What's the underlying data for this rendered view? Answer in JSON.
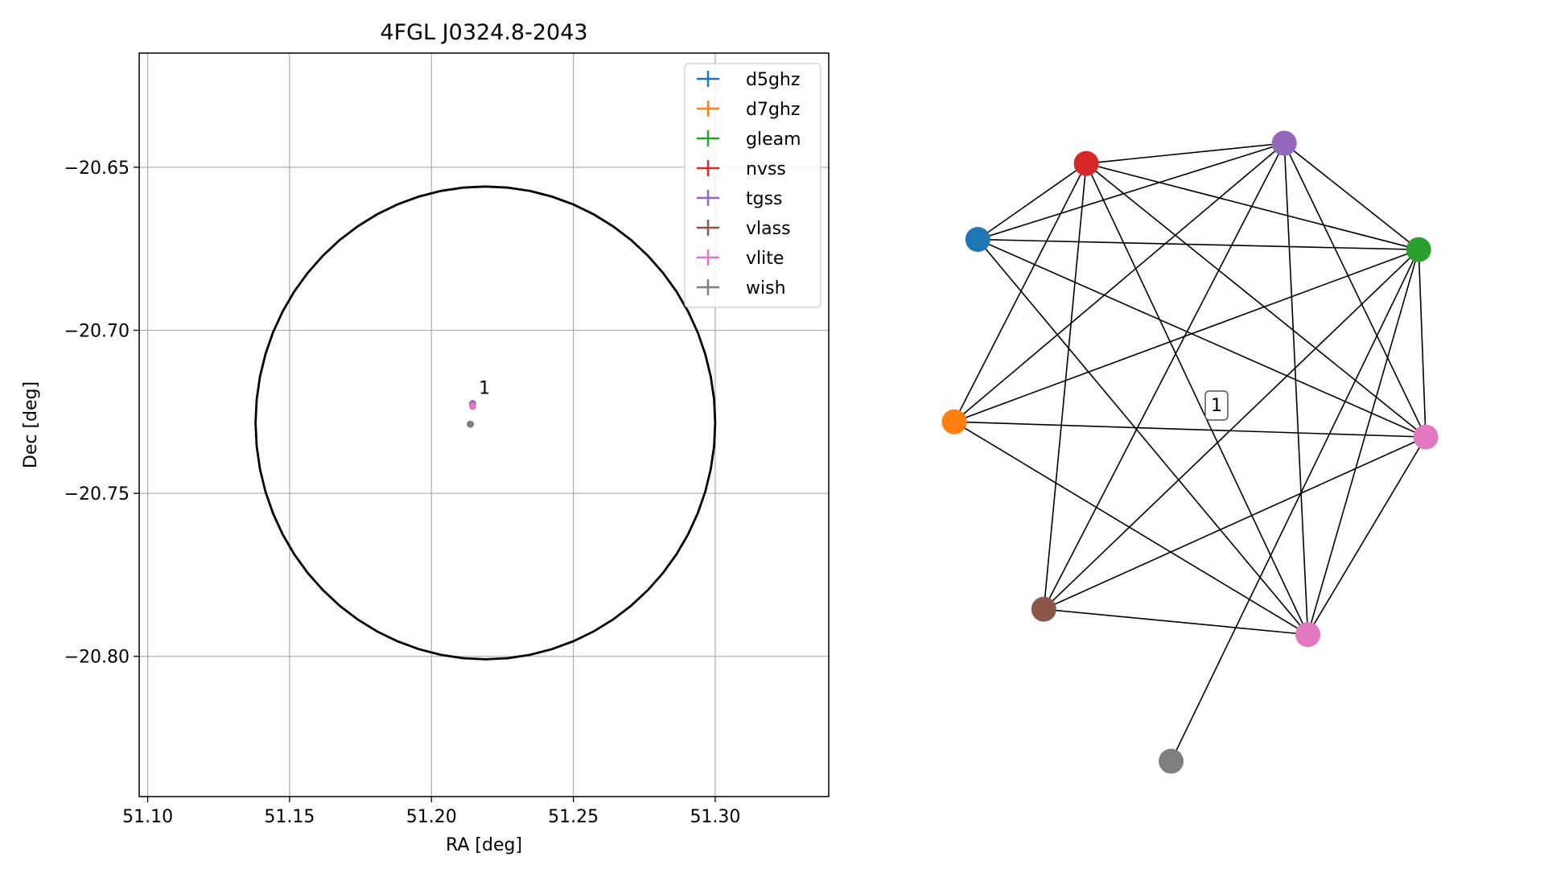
{
  "chart_data": [
    {
      "type": "scatter",
      "title": "4FGL J0324.8-2043",
      "xlabel": "RA [deg]",
      "ylabel": "Dec [deg]",
      "xlim": [
        51.097,
        51.34
      ],
      "ylim": [
        -20.843,
        -20.615
      ],
      "xticks": [
        51.1,
        51.15,
        51.2,
        51.25,
        51.3
      ],
      "xtick_labels": [
        "51.10",
        "51.15",
        "51.20",
        "51.25",
        "51.30"
      ],
      "yticks": [
        -20.65,
        -20.7,
        -20.75,
        -20.8
      ],
      "ytick_labels": [
        "−20.65",
        "−20.70",
        "−20.75",
        "−20.80"
      ],
      "grid": true,
      "legend_placement": "top-right",
      "circle": {
        "center": [
          51.219,
          -20.7284
        ],
        "radius_ra": 0.081,
        "radius_dec": 0.0725,
        "color": "#000000"
      },
      "series": [
        {
          "name": "d5ghz",
          "color": "#1f77b4",
          "points": []
        },
        {
          "name": "d7ghz",
          "color": "#ff7f0e",
          "points": []
        },
        {
          "name": "gleam",
          "color": "#2ca02c",
          "points": []
        },
        {
          "name": "nvss",
          "color": "#d62728",
          "points": []
        },
        {
          "name": "tgss",
          "color": "#9467bd",
          "points": [
            {
              "x": 51.2145,
              "y": -20.7225
            }
          ]
        },
        {
          "name": "vlass",
          "color": "#8c564b",
          "points": []
        },
        {
          "name": "vlite",
          "color": "#e377c2",
          "points": [
            {
              "x": 51.2145,
              "y": -20.7233
            }
          ]
        },
        {
          "name": "wish",
          "color": "#7f7f7f",
          "points": [
            {
              "x": 51.2137,
              "y": -20.7288
            }
          ]
        }
      ],
      "annotations": [
        {
          "text": "1",
          "x": 51.2167,
          "y": -20.7195
        }
      ]
    },
    {
      "type": "network",
      "cluster_label": "1",
      "nodes": [
        {
          "id": "nvss",
          "color": "#d62728",
          "x": 0.28,
          "y": 0.96
        },
        {
          "id": "tgss",
          "color": "#9467bd",
          "x": 0.7,
          "y": 1.0
        },
        {
          "id": "d5ghz",
          "color": "#1f77b4",
          "x": 0.05,
          "y": 0.81
        },
        {
          "id": "gleam",
          "color": "#2ca02c",
          "x": 0.985,
          "y": 0.79
        },
        {
          "id": "d7ghz",
          "color": "#ff7f0e",
          "x": 0.0,
          "y": 0.45
        },
        {
          "id": "vlite_a",
          "color": "#e377c2",
          "x": 1.0,
          "y": 0.42
        },
        {
          "id": "vlass",
          "color": "#8c564b",
          "x": 0.19,
          "y": 0.08
        },
        {
          "id": "vlite_b",
          "color": "#e377c2",
          "x": 0.75,
          "y": 0.03
        },
        {
          "id": "wish",
          "color": "#7f7f7f",
          "x": 0.46,
          "y": -0.22
        }
      ],
      "edges": [
        [
          "nvss",
          "tgss"
        ],
        [
          "nvss",
          "d5ghz"
        ],
        [
          "nvss",
          "gleam"
        ],
        [
          "nvss",
          "d7ghz"
        ],
        [
          "nvss",
          "vlite_a"
        ],
        [
          "nvss",
          "vlass"
        ],
        [
          "nvss",
          "vlite_b"
        ],
        [
          "tgss",
          "d5ghz"
        ],
        [
          "tgss",
          "gleam"
        ],
        [
          "tgss",
          "d7ghz"
        ],
        [
          "tgss",
          "vlite_a"
        ],
        [
          "tgss",
          "vlass"
        ],
        [
          "tgss",
          "vlite_b"
        ],
        [
          "d5ghz",
          "gleam"
        ],
        [
          "d5ghz",
          "vlite_a"
        ],
        [
          "d5ghz",
          "vlite_b"
        ],
        [
          "gleam",
          "d7ghz"
        ],
        [
          "gleam",
          "vlite_a"
        ],
        [
          "gleam",
          "vlass"
        ],
        [
          "gleam",
          "vlite_b"
        ],
        [
          "gleam",
          "wish"
        ],
        [
          "d7ghz",
          "vlite_a"
        ],
        [
          "d7ghz",
          "vlite_b"
        ],
        [
          "vlite_a",
          "vlass"
        ],
        [
          "vlite_a",
          "vlite_b"
        ],
        [
          "vlass",
          "vlite_b"
        ]
      ]
    }
  ]
}
